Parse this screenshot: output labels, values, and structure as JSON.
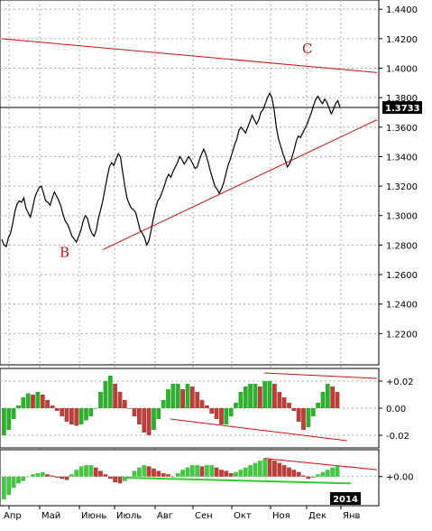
{
  "chart_data": [
    {
      "type": "candlestick",
      "title": "",
      "y_ticks": [
        "1.4400",
        "1.4200",
        "1.4000",
        "1.3800",
        "1.3600",
        "1.3400",
        "1.3200",
        "1.3000",
        "1.2800",
        "1.2600",
        "1.2400",
        "1.2200"
      ],
      "ylim": [
        1.2,
        1.445
      ],
      "x_ticks": [
        "Апр",
        "Май",
        "Июнь",
        "Июль",
        "Авг",
        "Сен",
        "Окт",
        "Ноя",
        "Дек",
        "Янв"
      ],
      "year_label": "2014",
      "current_price": 1.3733,
      "current_price_label": "1.3733",
      "close": [
        1.284,
        1.28,
        1.279,
        1.285,
        1.288,
        1.295,
        1.303,
        1.308,
        1.31,
        1.309,
        1.312,
        1.305,
        1.302,
        1.299,
        1.305,
        1.312,
        1.316,
        1.319,
        1.32,
        1.315,
        1.31,
        1.309,
        1.307,
        1.312,
        1.316,
        1.313,
        1.31,
        1.306,
        1.3,
        1.296,
        1.294,
        1.29,
        1.286,
        1.284,
        1.282,
        1.286,
        1.29,
        1.296,
        1.3,
        1.298,
        1.292,
        1.288,
        1.286,
        1.29,
        1.298,
        1.304,
        1.31,
        1.318,
        1.326,
        1.333,
        1.336,
        1.334,
        1.338,
        1.342,
        1.34,
        1.33,
        1.32,
        1.312,
        1.308,
        1.305,
        1.304,
        1.302,
        1.296,
        1.29,
        1.288,
        1.285,
        1.28,
        1.283,
        1.29,
        1.298,
        1.305,
        1.31,
        1.312,
        1.316,
        1.32,
        1.325,
        1.328,
        1.326,
        1.33,
        1.333,
        1.336,
        1.34,
        1.338,
        1.335,
        1.337,
        1.34,
        1.338,
        1.335,
        1.332,
        1.333,
        1.338,
        1.342,
        1.345,
        1.341,
        1.336,
        1.33,
        1.325,
        1.32,
        1.318,
        1.315,
        1.318,
        1.322,
        1.328,
        1.334,
        1.338,
        1.343,
        1.348,
        1.352,
        1.358,
        1.36,
        1.358,
        1.356,
        1.36,
        1.364,
        1.368,
        1.365,
        1.362,
        1.365,
        1.37,
        1.372,
        1.376,
        1.38,
        1.383,
        1.38,
        1.372,
        1.36,
        1.352,
        1.347,
        1.342,
        1.338,
        1.333,
        1.335,
        1.339,
        1.344,
        1.35,
        1.354,
        1.353,
        1.356,
        1.359,
        1.362,
        1.366,
        1.37,
        1.375,
        1.379,
        1.381,
        1.378,
        1.376,
        1.379,
        1.377,
        1.373,
        1.369,
        1.372,
        1.376,
        1.378,
        1.3733
      ],
      "annotations": [
        {
          "label": "B",
          "price": 1.275
        },
        {
          "label": "C",
          "price": 1.413
        }
      ],
      "trendlines": [
        {
          "from": [
            0,
            1.42
          ],
          "to": [
            1,
            1.397
          ]
        },
        {
          "from": [
            0.27,
            1.277
          ],
          "to": [
            1,
            1.365
          ]
        }
      ]
    },
    {
      "type": "histogram",
      "name": "",
      "y_ticks": [
        "+0.02",
        "0.00",
        "-0.02"
      ],
      "ylim": [
        -0.028,
        0.028
      ],
      "values": [
        -0.02,
        -0.016,
        -0.008,
        0.002,
        0.008,
        0.011,
        0.01,
        0.012,
        0.01,
        0.006,
        0.002,
        -0.002,
        -0.006,
        -0.01,
        -0.012,
        -0.013,
        -0.012,
        -0.009,
        -0.006,
        0.0,
        0.012,
        0.02,
        0.024,
        0.018,
        0.012,
        0.006,
        0.0,
        -0.006,
        -0.012,
        -0.018,
        -0.02,
        -0.016,
        -0.008,
        0.006,
        0.014,
        0.018,
        0.018,
        0.014,
        0.018,
        0.016,
        0.012,
        0.006,
        0.002,
        -0.004,
        -0.008,
        -0.012,
        -0.012,
        -0.006,
        0.004,
        0.012,
        0.016,
        0.018,
        0.018,
        0.016,
        0.02,
        0.02,
        0.018,
        0.012,
        0.008,
        0.004,
        -0.002,
        -0.01,
        -0.016,
        -0.014,
        -0.006,
        0.004,
        0.012,
        0.018,
        0.016,
        0.012
      ],
      "trendlines": [
        {
          "from": [
            0.7,
            0.026
          ],
          "to": [
            1,
            0.022
          ]
        },
        {
          "from": [
            0.45,
            -0.008
          ],
          "to": [
            0.92,
            -0.024
          ]
        }
      ]
    },
    {
      "type": "histogram",
      "name": "",
      "y_ticks": [
        "+0.00"
      ],
      "ylim": [
        -0.024,
        0.022
      ],
      "values": [
        -0.02,
        -0.016,
        -0.01,
        -0.006,
        -0.004,
        0.0,
        0.002,
        0.003,
        0.004,
        0.002,
        0.001,
        -0.001,
        -0.002,
        -0.003,
        0.002,
        0.006,
        0.009,
        0.01,
        0.01,
        0.008,
        0.005,
        0.002,
        -0.002,
        -0.005,
        -0.006,
        -0.004,
        0.0,
        0.005,
        0.008,
        0.01,
        0.009,
        0.007,
        0.005,
        0.003,
        0.002,
        0.0,
        0.003,
        0.006,
        0.008,
        0.01,
        0.01,
        0.009,
        0.01,
        0.01,
        0.008,
        0.006,
        0.005,
        0.003,
        0.004,
        0.006,
        0.008,
        0.01,
        0.012,
        0.014,
        0.016,
        0.015,
        0.014,
        0.012,
        0.01,
        0.008,
        0.006,
        0.004,
        0.001,
        -0.002,
        -0.001,
        0.002,
        0.004,
        0.006,
        0.008,
        0.009
      ],
      "trendlines": [
        {
          "from": [
            0.7,
            0.016
          ],
          "to": [
            1,
            0.006
          ]
        },
        {
          "from": [
            0.33,
            -0.001
          ],
          "to": [
            0.93,
            -0.006
          ]
        }
      ]
    }
  ]
}
